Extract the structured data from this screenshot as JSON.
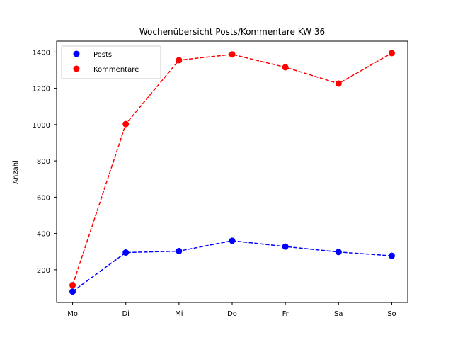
{
  "chart_data": {
    "type": "line",
    "title": "Wochenübersicht Posts/Kommentare KW 36",
    "xlabel": "",
    "ylabel": "Anzahl",
    "categories": [
      "Mo",
      "Di",
      "Mi",
      "Do",
      "Fr",
      "Sa",
      "So"
    ],
    "ylim": [
      20,
      1460
    ],
    "yticks": [
      200,
      400,
      600,
      800,
      1000,
      1200,
      1400
    ],
    "grid": false,
    "legend_position": "upper-left",
    "line_style": "dashed",
    "series": [
      {
        "name": "Posts",
        "color": "#0000ff",
        "values": [
          80,
          295,
          303,
          360,
          328,
          298,
          277
        ]
      },
      {
        "name": "Kommentare",
        "color": "#ff0000",
        "values": [
          115,
          1003,
          1355,
          1387,
          1316,
          1226,
          1394
        ]
      }
    ]
  }
}
